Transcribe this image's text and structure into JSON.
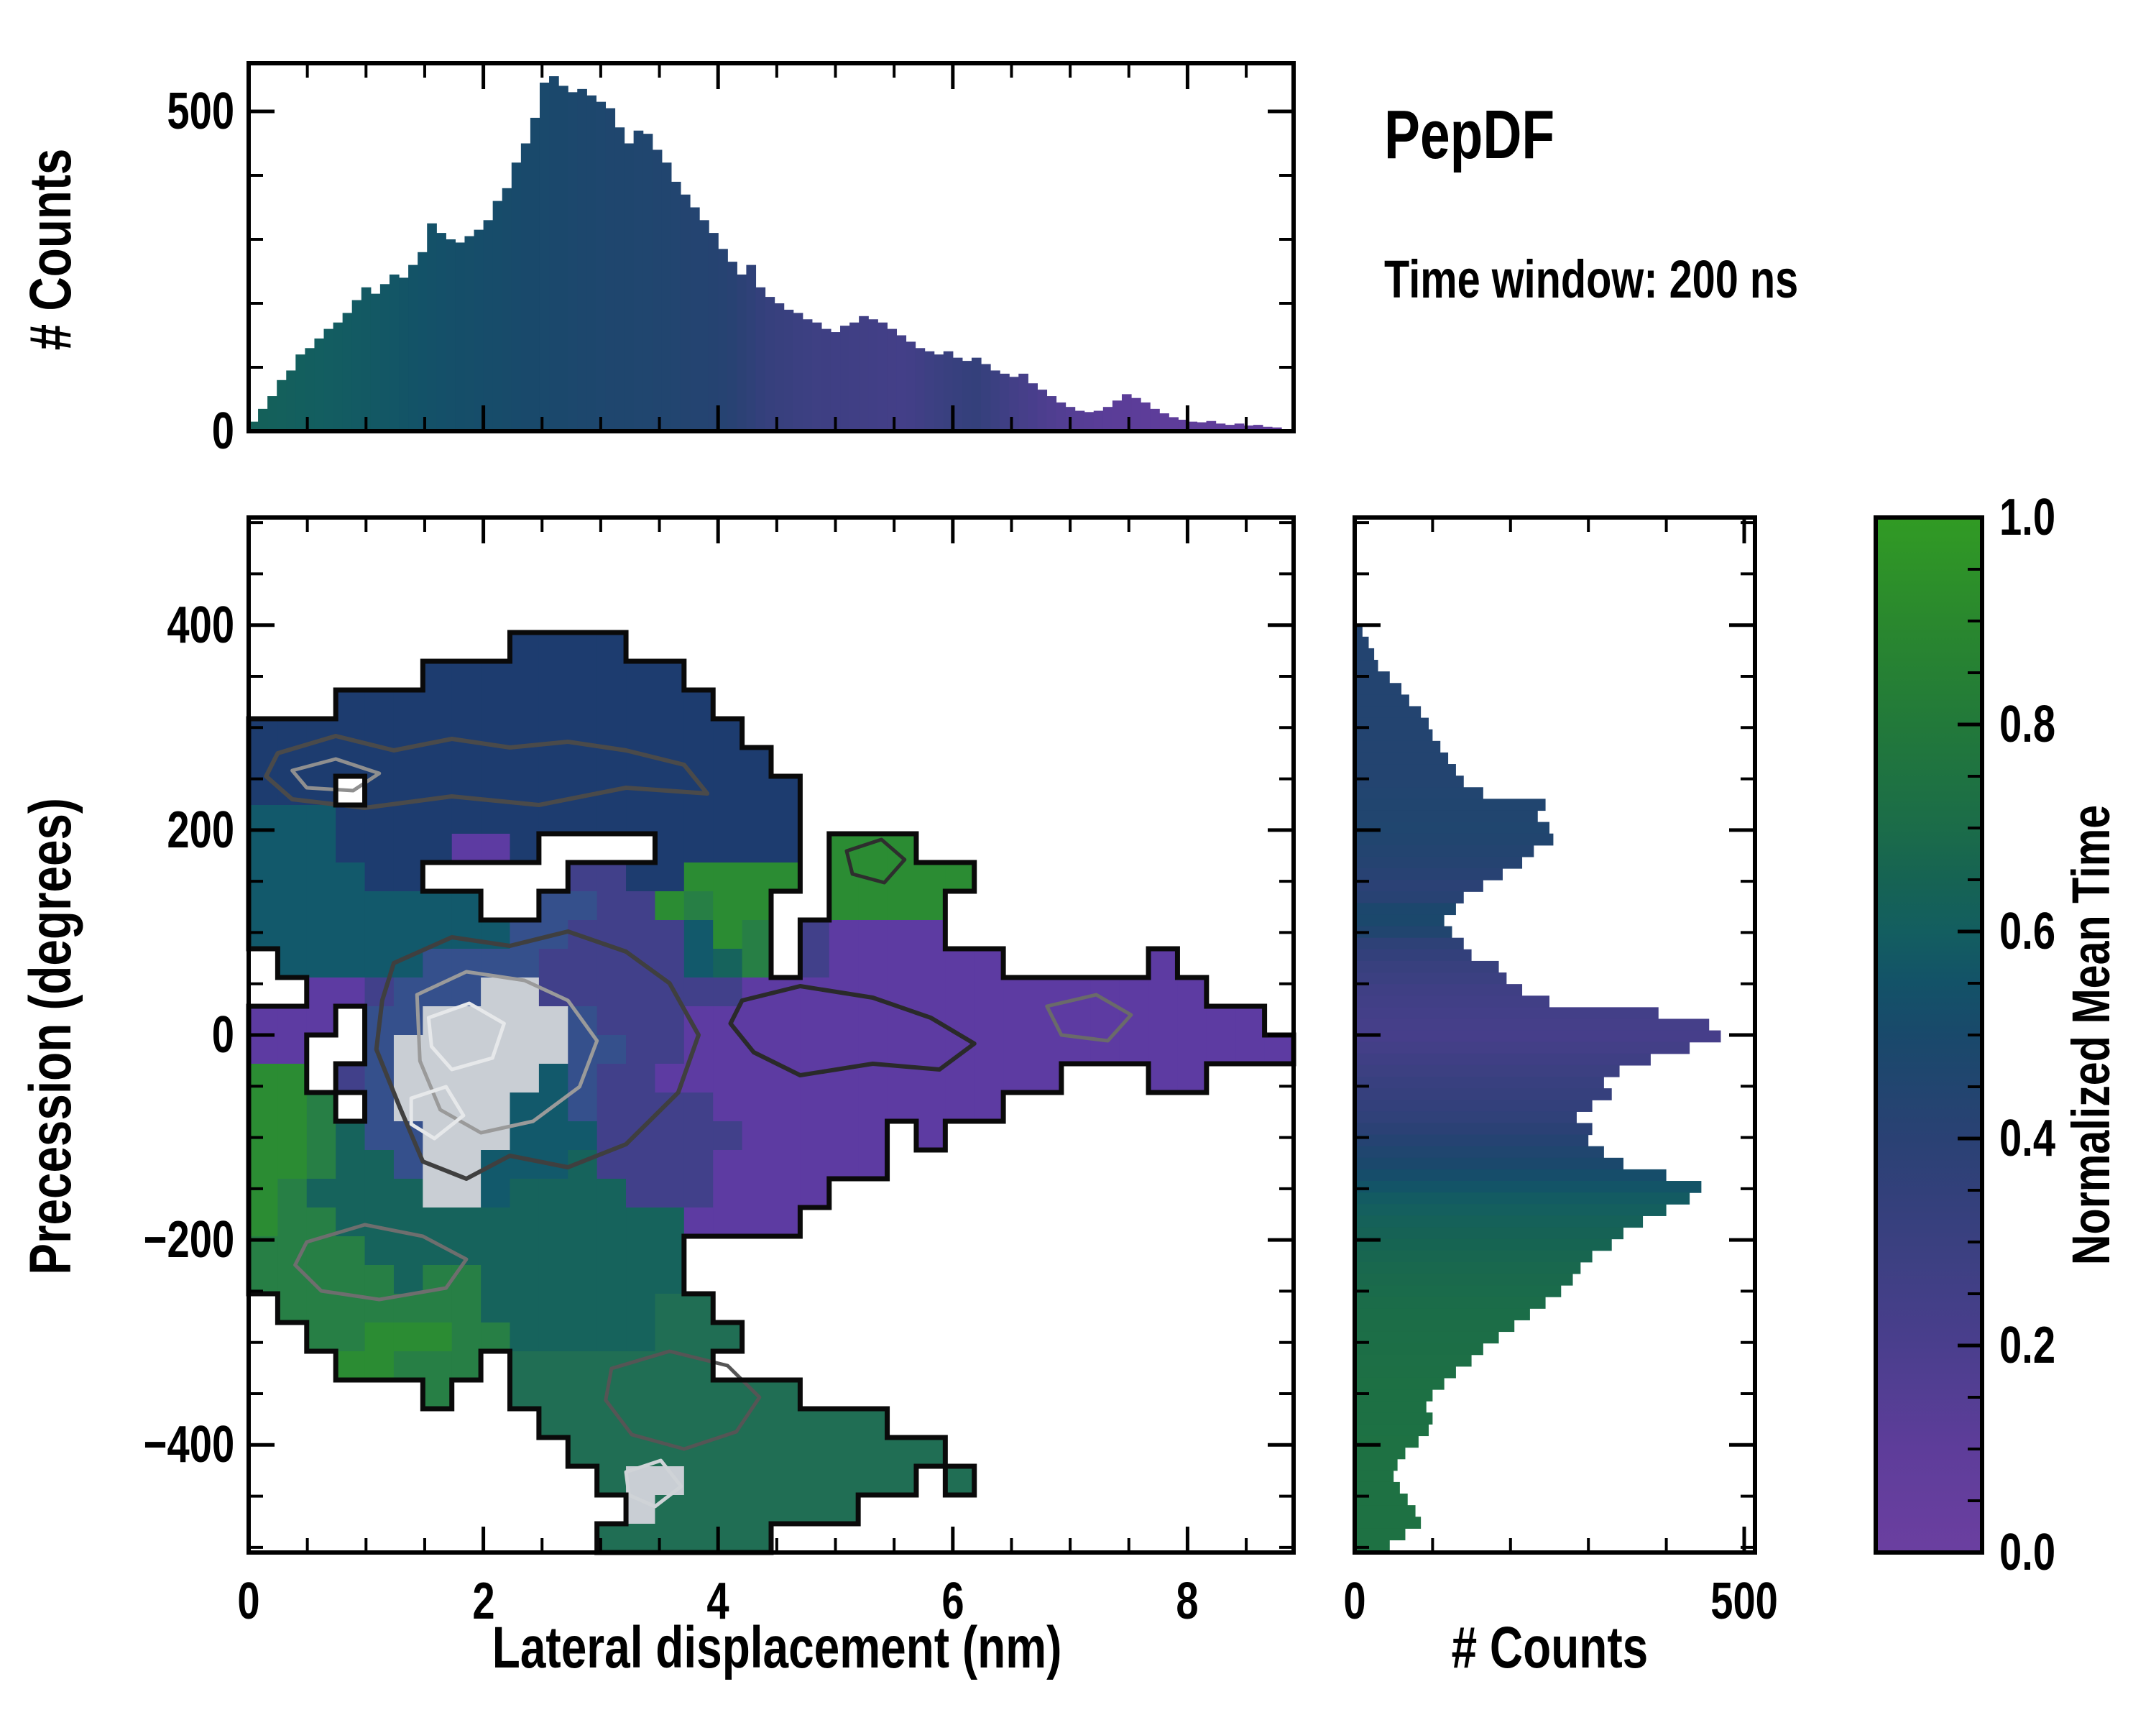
{
  "title": "PepDF",
  "subtitle": "Time window: 200 ns",
  "colors": {
    "background": "#ffffff",
    "axis": "#000000",
    "contour_black": "#0a0a0a",
    "contour_dark_gray": "#3f3f3f",
    "contour_gray": "#8f8f8f",
    "contour_white": "#e6e8ea"
  },
  "colormap": [
    [
      0.0,
      "#6b3fa0"
    ],
    [
      0.1,
      "#5e3d9a"
    ],
    [
      0.2,
      "#4a3e8d"
    ],
    [
      0.3,
      "#3a4080"
    ],
    [
      0.4,
      "#2a4174"
    ],
    [
      0.5,
      "#19496b"
    ],
    [
      0.55,
      "#135268"
    ],
    [
      0.6,
      "#135e60"
    ],
    [
      0.65,
      "#166353"
    ],
    [
      0.7,
      "#1b6c49"
    ],
    [
      0.8,
      "#22793a"
    ],
    [
      0.9,
      "#2a882e"
    ],
    [
      1.0,
      "#319b24"
    ]
  ],
  "chart_data": [
    {
      "id": "top_histogram",
      "type": "bar",
      "ylabel": "# Counts",
      "x_range": [
        0,
        8.9
      ],
      "y_range": [
        0,
        575
      ],
      "bin_width": 0.08,
      "yticks_major": [
        0,
        500
      ],
      "yticks_minor": [
        100,
        200,
        300,
        400
      ],
      "xticks_major": [
        0,
        2,
        4,
        6,
        8
      ],
      "xticks_minor": [
        0.5,
        1,
        1.5,
        2.5,
        3,
        3.5,
        4.5,
        5,
        5.5,
        6.5,
        7,
        7.5,
        8.5
      ],
      "values": [
        15,
        35,
        55,
        80,
        95,
        120,
        130,
        145,
        160,
        170,
        185,
        205,
        225,
        215,
        230,
        245,
        240,
        260,
        280,
        325,
        310,
        300,
        295,
        305,
        315,
        330,
        360,
        380,
        420,
        450,
        490,
        545,
        555,
        540,
        530,
        535,
        525,
        515,
        505,
        475,
        450,
        470,
        465,
        440,
        420,
        390,
        370,
        350,
        330,
        310,
        285,
        265,
        245,
        260,
        225,
        210,
        200,
        190,
        185,
        175,
        170,
        160,
        155,
        165,
        170,
        180,
        175,
        170,
        160,
        150,
        140,
        130,
        125,
        120,
        125,
        115,
        110,
        115,
        105,
        95,
        90,
        85,
        90,
        75,
        65,
        55,
        45,
        38,
        32,
        30,
        32,
        38,
        48,
        58,
        52,
        45,
        35,
        28,
        22,
        18,
        15,
        14,
        16,
        12,
        10,
        12,
        9,
        10,
        7,
        6
      ],
      "color_stops": [
        [
          0,
          0.63
        ],
        [
          1.0,
          0.58
        ],
        [
          1.8,
          0.53
        ],
        [
          2.4,
          0.5
        ],
        [
          3.0,
          0.47
        ],
        [
          3.6,
          0.45
        ],
        [
          4.1,
          0.42
        ],
        [
          4.4,
          0.33
        ],
        [
          4.8,
          0.28
        ],
        [
          5.2,
          0.26
        ],
        [
          5.6,
          0.24
        ],
        [
          5.9,
          0.3
        ],
        [
          6.2,
          0.34
        ],
        [
          6.5,
          0.25
        ],
        [
          6.9,
          0.16
        ],
        [
          7.3,
          0.12
        ],
        [
          7.8,
          0.1
        ],
        [
          8.8,
          0.08
        ]
      ]
    },
    {
      "id": "main_heatmap",
      "type": "heatmap",
      "xlabel": "Lateral displacement (nm)",
      "ylabel": "Precession (degrees)",
      "x_range": [
        0,
        8.9
      ],
      "y_range": [
        -505,
        505
      ],
      "xticks_major": [
        0,
        2,
        4,
        6,
        8
      ],
      "xticks_minor": [
        0.5,
        1,
        1.5,
        2.5,
        3,
        3.5,
        4.5,
        5,
        5.5,
        6.5,
        7,
        7.5,
        8.5
      ],
      "yticks_major": [
        400,
        200,
        0,
        -200,
        -400
      ],
      "ytick_labels": [
        "400",
        "200",
        "0",
        "−200",
        "−400"
      ],
      "yticks_minor": [
        500,
        450,
        350,
        300,
        250,
        150,
        100,
        50,
        -50,
        -100,
        -150,
        -250,
        -300,
        -350,
        -450,
        -500
      ],
      "grid_cols": 36,
      "grid_rows": 36,
      "palette": {
        "N": "#1d3c6f",
        "B": "#35508c",
        "p": "#41408a",
        "P": "#5d3ba2",
        "T": "#12596b",
        "t": "#16635c",
        "s": "#206e54",
        "G": "#2b8c33",
        "g": "#277f45",
        "W": "#c9ced4"
      },
      "rows": [
        "....................................",
        "....................................",
        "....................................",
        "....................................",
        ".........NNNN.......................",
        "......NNNNNNNNN.....................",
        "...NNNNNNNNNNNNN....................",
        "NNNNNNNNNNNNNNNNN...................",
        "NNNNNNNNNNNNNNNNNN..................",
        "NNN.NNNNNNNNNNNNNNN.................",
        "TTTNNNNNNNNNNNNNNNN.................",
        "TTTNNNNPPN....NNNNN.GGG.............",
        "TTTTNN.....ppNNGGGG.GGGGG...........",
        "TTTTTTTT..BBppGgGG..GGGG............",
        "TTTTTTTTTBBppppTGg.pPPPP............",
        ".TTTTTBBBBpppppTtg.pPPPPPP.....P....",
        "..PPpBBBWWpppppppPPPPPPPPPPPPPPPP...",
        "PPP.BBWWWWWBpppPPPPPPPPPPPPPPPPPPPP.",
        "PP..BWWWWWWBBppPPPPPPPPPPPPPPPPPPPPP",
        "GG.pBWWWWWTBppPPPPPPPPPPPPPP...PP...",
        "GGg.BWWWWTTBppppPPPPPPPPPP..........",
        "GGgtBBWWWTTTpppppPPPPP.P............",
        "GGgttBWWTTTtppppPPPPPP..............",
        "GgttttWWTttttpppPPPP................",
        "GggttttttttttttPPPP.................",
        "ggggttttttttttt.....................",
        "gggggtggttttttt.....................",
        ".gggggggttttttss....................",
        "..ggGGGggtttttsss...................",
        "...GGggg.sssssss....................",
        "......g..ssssssssss.................",
        "..........ssssssssssss..............",
        "...........sssssssssssss............",
        "............sWWssssssss.s...........",
        ".............Wsssssss...............",
        "............ssssss.................."
      ],
      "contours": [
        {
          "color": "#4a4a4a",
          "width": 6,
          "points": [
            [
              1,
              8.2
            ],
            [
              3,
              7.6
            ],
            [
              5,
              8.1
            ],
            [
              7,
              7.7
            ],
            [
              9,
              8.0
            ],
            [
              11,
              7.8
            ],
            [
              13,
              8.1
            ],
            [
              15,
              8.6
            ],
            [
              15.8,
              9.6
            ],
            [
              13,
              9.4
            ],
            [
              10,
              10.0
            ],
            [
              7,
              9.7
            ],
            [
              4,
              10.1
            ],
            [
              1.5,
              9.8
            ],
            [
              0.6,
              9.0
            ]
          ]
        },
        {
          "color": "#8f8f8f",
          "width": 5,
          "points": [
            [
              1.5,
              8.8
            ],
            [
              3,
              8.4
            ],
            [
              4.5,
              8.9
            ],
            [
              3.6,
              9.5
            ],
            [
              2,
              9.4
            ]
          ]
        },
        {
          "color": "#3f3f3f",
          "width": 6,
          "points": [
            [
              5,
              15.5
            ],
            [
              7,
              14.6
            ],
            [
              9,
              14.9
            ],
            [
              11,
              14.4
            ],
            [
              13,
              15.1
            ],
            [
              14.5,
              16.2
            ],
            [
              15.5,
              18
            ],
            [
              14.8,
              20
            ],
            [
              13,
              21.8
            ],
            [
              11,
              22.6
            ],
            [
              9,
              22.2
            ],
            [
              7.5,
              23.0
            ],
            [
              6,
              22.4
            ],
            [
              5.2,
              20.5
            ],
            [
              4.4,
              18.5
            ],
            [
              4.6,
              16.8
            ]
          ]
        },
        {
          "color": "#9a9a9a",
          "width": 5,
          "points": [
            [
              5.8,
              16.6
            ],
            [
              7.5,
              15.8
            ],
            [
              9.5,
              16.1
            ],
            [
              11,
              16.8
            ],
            [
              12,
              18.2
            ],
            [
              11.4,
              19.8
            ],
            [
              9.8,
              21.0
            ],
            [
              8,
              21.4
            ],
            [
              6.6,
              20.6
            ],
            [
              5.9,
              18.9
            ]
          ]
        },
        {
          "color": "#e6e8ea",
          "width": 5,
          "points": [
            [
              6.2,
              17.4
            ],
            [
              7.6,
              16.9
            ],
            [
              8.8,
              17.6
            ],
            [
              8.4,
              18.8
            ],
            [
              7.0,
              19.2
            ],
            [
              6.3,
              18.4
            ]
          ]
        },
        {
          "color": "#e6e8ea",
          "width": 5,
          "points": [
            [
              5.6,
              20.2
            ],
            [
              6.8,
              19.8
            ],
            [
              7.4,
              20.8
            ],
            [
              6.4,
              21.6
            ],
            [
              5.6,
              21.1
            ]
          ]
        },
        {
          "color": "#6e6e6e",
          "width": 5,
          "points": [
            [
              2,
              25.2
            ],
            [
              4,
              24.6
            ],
            [
              6,
              25.0
            ],
            [
              7.5,
              25.8
            ],
            [
              6.8,
              26.8
            ],
            [
              4.5,
              27.2
            ],
            [
              2.5,
              26.9
            ],
            [
              1.6,
              26.0
            ]
          ]
        },
        {
          "color": "#555555",
          "width": 5,
          "points": [
            [
              12.5,
              29.6
            ],
            [
              14.5,
              29.0
            ],
            [
              16.5,
              29.5
            ],
            [
              17.6,
              30.6
            ],
            [
              16.8,
              31.8
            ],
            [
              15.0,
              32.4
            ],
            [
              13.2,
              31.9
            ],
            [
              12.3,
              30.7
            ]
          ]
        },
        {
          "color": "#cfd3d7",
          "width": 5,
          "points": [
            [
              13.0,
              33.2
            ],
            [
              14.2,
              32.8
            ],
            [
              14.9,
              33.7
            ],
            [
              14.0,
              34.4
            ],
            [
              13.1,
              34.0
            ]
          ]
        },
        {
          "color": "#2e2e2e",
          "width": 5,
          "points": [
            [
              20.6,
              11.6
            ],
            [
              21.8,
              11.2
            ],
            [
              22.6,
              11.9
            ],
            [
              21.9,
              12.7
            ],
            [
              20.8,
              12.4
            ]
          ]
        },
        {
          "color": "#2a2a2a",
          "width": 6,
          "points": [
            [
              17,
              16.8
            ],
            [
              19,
              16.3
            ],
            [
              21.5,
              16.7
            ],
            [
              23.5,
              17.4
            ],
            [
              25,
              18.3
            ],
            [
              23.8,
              19.2
            ],
            [
              21.5,
              19.0
            ],
            [
              19,
              19.4
            ],
            [
              17.4,
              18.6
            ],
            [
              16.6,
              17.6
            ]
          ]
        },
        {
          "color": "#6a6a6a",
          "width": 5,
          "points": [
            [
              27.5,
              17.0
            ],
            [
              29.2,
              16.6
            ],
            [
              30.4,
              17.3
            ],
            [
              29.6,
              18.2
            ],
            [
              28.0,
              18.0
            ]
          ]
        }
      ]
    },
    {
      "id": "right_histogram",
      "type": "bar",
      "orientation": "horizontal",
      "xlabel": "# Counts",
      "x_range": [
        0,
        513
      ],
      "y_range": [
        -505,
        505
      ],
      "bin_width_deg": 11.3,
      "first_bin_top_deg": 400,
      "xticks_major": [
        0,
        500
      ],
      "xticks_minor": [
        100,
        200,
        300,
        400
      ],
      "values": [
        10,
        18,
        25,
        30,
        45,
        60,
        70,
        85,
        95,
        100,
        110,
        120,
        130,
        140,
        165,
        245,
        235,
        250,
        255,
        230,
        215,
        190,
        165,
        140,
        130,
        115,
        125,
        140,
        150,
        185,
        195,
        215,
        250,
        390,
        455,
        470,
        430,
        380,
        340,
        320,
        330,
        305,
        285,
        305,
        300,
        320,
        345,
        400,
        445,
        430,
        400,
        370,
        345,
        330,
        305,
        290,
        280,
        265,
        245,
        225,
        205,
        185,
        165,
        150,
        130,
        115,
        100,
        92,
        100,
        95,
        82,
        65,
        55,
        50,
        58,
        68,
        78,
        85,
        65,
        45,
        25,
        12
      ],
      "color_stops": [
        [
          400,
          0.44
        ],
        [
          250,
          0.44
        ],
        [
          200,
          0.46
        ],
        [
          160,
          0.42
        ],
        [
          140,
          0.38
        ],
        [
          120,
          0.5
        ],
        [
          105,
          0.48
        ],
        [
          90,
          0.38
        ],
        [
          70,
          0.32
        ],
        [
          50,
          0.28
        ],
        [
          30,
          0.25
        ],
        [
          10,
          0.23
        ],
        [
          0,
          0.22
        ],
        [
          -20,
          0.26
        ],
        [
          -40,
          0.3
        ],
        [
          -60,
          0.33
        ],
        [
          -80,
          0.36
        ],
        [
          -100,
          0.42
        ],
        [
          -115,
          0.46
        ],
        [
          -130,
          0.5
        ],
        [
          -145,
          0.55
        ],
        [
          -165,
          0.6
        ],
        [
          -190,
          0.64
        ],
        [
          -230,
          0.68
        ],
        [
          -280,
          0.71
        ],
        [
          -340,
          0.73
        ],
        [
          -420,
          0.74
        ],
        [
          -505,
          0.74
        ]
      ]
    },
    {
      "id": "colorbar",
      "type": "colorbar",
      "label": "Normalized Mean Time",
      "range": [
        0.0,
        1.0
      ],
      "ticks_major": [
        0.0,
        0.2,
        0.4,
        0.6,
        0.8,
        1.0
      ],
      "tick_labels": [
        "0.0",
        "0.2",
        "0.4",
        "0.6",
        "0.8",
        "1.0"
      ],
      "ticks_minor": [
        0.05,
        0.1,
        0.15,
        0.25,
        0.3,
        0.35,
        0.45,
        0.5,
        0.55,
        0.65,
        0.7,
        0.75,
        0.85,
        0.9,
        0.95
      ]
    }
  ]
}
